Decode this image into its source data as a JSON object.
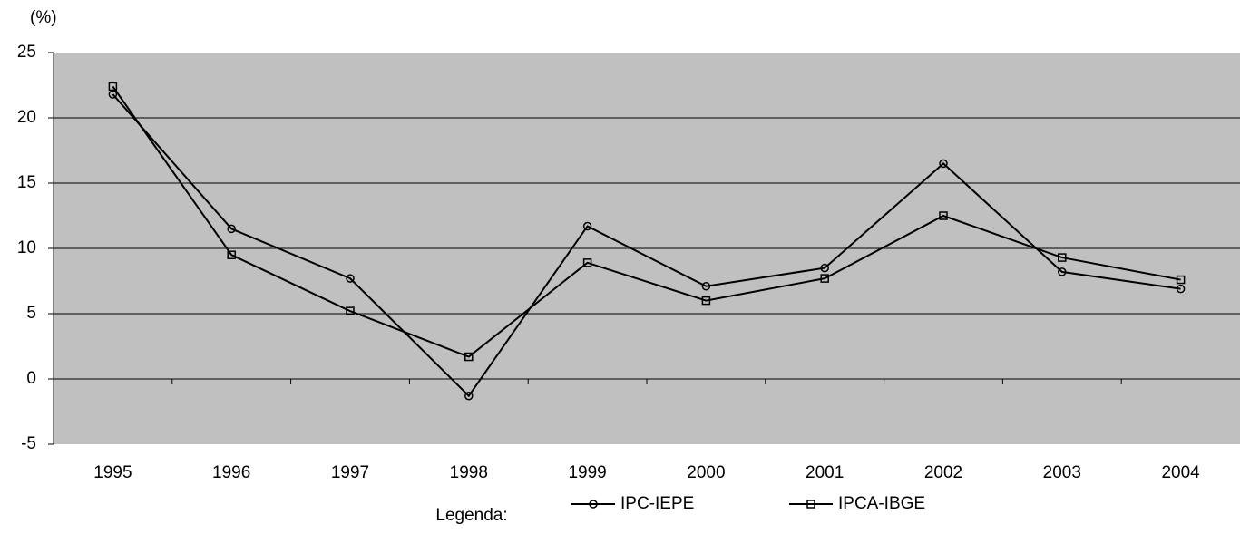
{
  "chart_data": {
    "type": "line",
    "y_label": "(%)",
    "legend_title": "Legenda:",
    "categories": [
      "1995",
      "1996",
      "1997",
      "1998",
      "1999",
      "2000",
      "2001",
      "2002",
      "2003",
      "2004"
    ],
    "series": [
      {
        "name": "IPC-IEPE",
        "color": "#000000",
        "marker": "circle",
        "values": [
          21.8,
          11.5,
          7.7,
          -1.3,
          11.7,
          7.1,
          8.5,
          16.5,
          8.2,
          6.9
        ]
      },
      {
        "name": "IPCA-IBGE",
        "color": "#000000",
        "marker": "square",
        "values": [
          22.4,
          9.5,
          5.2,
          1.7,
          8.9,
          6.0,
          7.7,
          12.5,
          9.3,
          7.6
        ]
      }
    ],
    "ylim": [
      -5,
      25
    ],
    "yticks": [
      -5,
      0,
      5,
      10,
      15,
      20,
      25
    ],
    "grid": true
  }
}
